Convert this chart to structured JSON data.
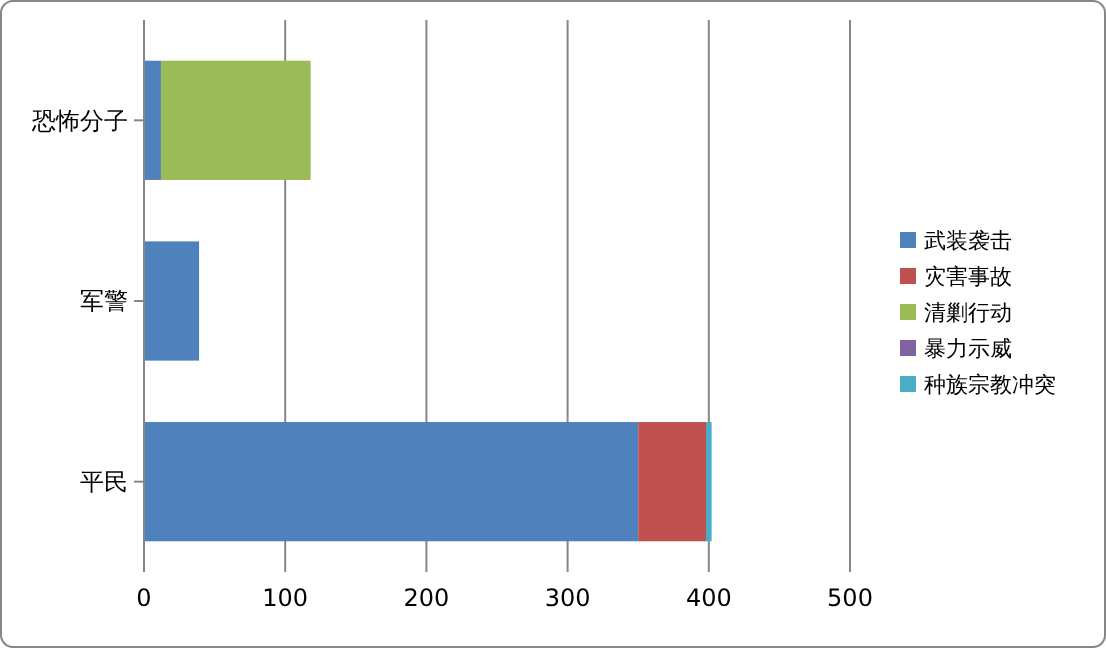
{
  "chart_data": {
    "type": "bar",
    "orientation": "horizontal",
    "stacked": true,
    "categories": [
      "恐怖分子",
      "军警",
      "平民"
    ],
    "series": [
      {
        "name": "武装袭击",
        "color": "#4f81bd",
        "values": [
          12,
          39,
          350
        ]
      },
      {
        "name": "灾害事故",
        "color": "#c0504d",
        "values": [
          0,
          0,
          48
        ]
      },
      {
        "name": "清剿行动",
        "color": "#9bbb59",
        "values": [
          106,
          0,
          0
        ]
      },
      {
        "name": "暴力示威",
        "color": "#8064a2",
        "values": [
          0,
          0,
          0
        ]
      },
      {
        "name": "种族宗教冲突",
        "color": "#4bacc6",
        "values": [
          0,
          0,
          4
        ]
      }
    ],
    "xlim": [
      0,
      500
    ],
    "xticks": [
      0,
      100,
      200,
      300,
      400,
      500
    ],
    "grid": "x",
    "legend": "right"
  }
}
